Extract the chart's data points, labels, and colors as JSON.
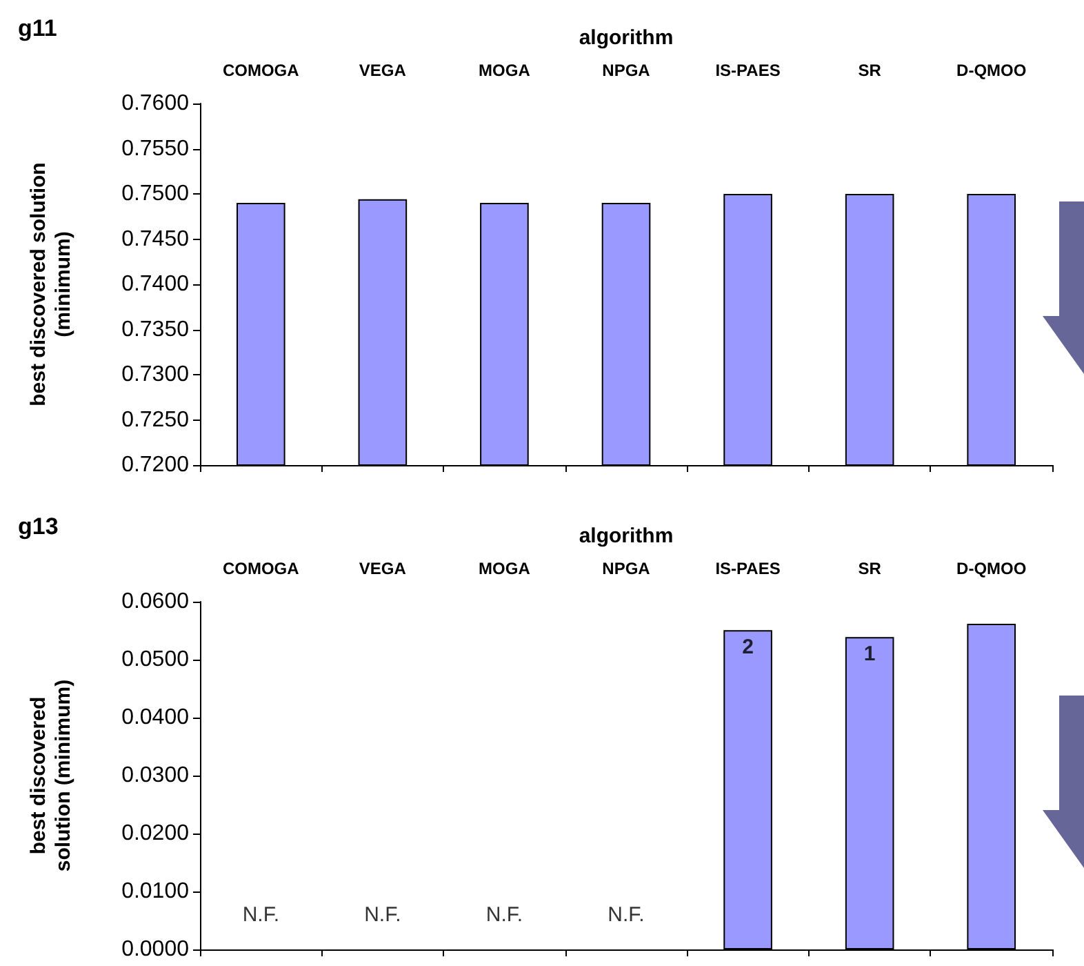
{
  "chart_data": [
    {
      "type": "bar",
      "title": "g11",
      "xlabel": "algorithm",
      "ylabel": "best discovered solution (minimum)",
      "categories": [
        "COMOGA",
        "VEGA",
        "MOGA",
        "NPGA",
        "IS-PAES",
        "SR",
        "D-QMOO"
      ],
      "color": "#9999ff",
      "values": [
        0.749,
        0.7494,
        0.749,
        0.749,
        0.75,
        0.75,
        0.75
      ],
      "ylim": [
        0.72,
        0.76
      ],
      "yticks": [
        {
          "value": 0.72,
          "label": "0.7200"
        },
        {
          "value": 0.725,
          "label": "0.7250"
        },
        {
          "value": 0.73,
          "label": "0.7300"
        },
        {
          "value": 0.735,
          "label": "0.7350"
        },
        {
          "value": 0.74,
          "label": "0.7400"
        },
        {
          "value": 0.745,
          "label": "0.7450"
        },
        {
          "value": 0.75,
          "label": "0.7500"
        },
        {
          "value": 0.755,
          "label": "0.7550"
        },
        {
          "value": 0.76,
          "label": "0.7600"
        }
      ],
      "grid": false
    },
    {
      "type": "bar",
      "title": "g13",
      "xlabel": "algorithm",
      "ylabel": "best discovered solution (minimum)",
      "categories": [
        "COMOGA",
        "VEGA",
        "MOGA",
        "NPGA",
        "IS-PAES",
        "SR",
        "D-QMOO"
      ],
      "color": "#9999ff",
      "values": [
        null,
        null,
        null,
        null,
        0.0551,
        0.0539,
        0.0562
      ],
      "ylim": [
        0,
        0.06
      ],
      "yticks": [
        {
          "value": 0,
          "label": "0.0000"
        },
        {
          "value": 0.01,
          "label": "0.0100"
        },
        {
          "value": 0.02,
          "label": "0.0200"
        },
        {
          "value": 0.03,
          "label": "0.0300"
        },
        {
          "value": 0.04,
          "label": "0.0400"
        },
        {
          "value": 0.05,
          "label": "0.0500"
        },
        {
          "value": 0.06,
          "label": "0.0600"
        }
      ],
      "grid": false,
      "annotations": [
        "N.F.",
        "N.F.",
        "N.F.",
        "N.F.",
        "2",
        "1"
      ]
    }
  ]
}
